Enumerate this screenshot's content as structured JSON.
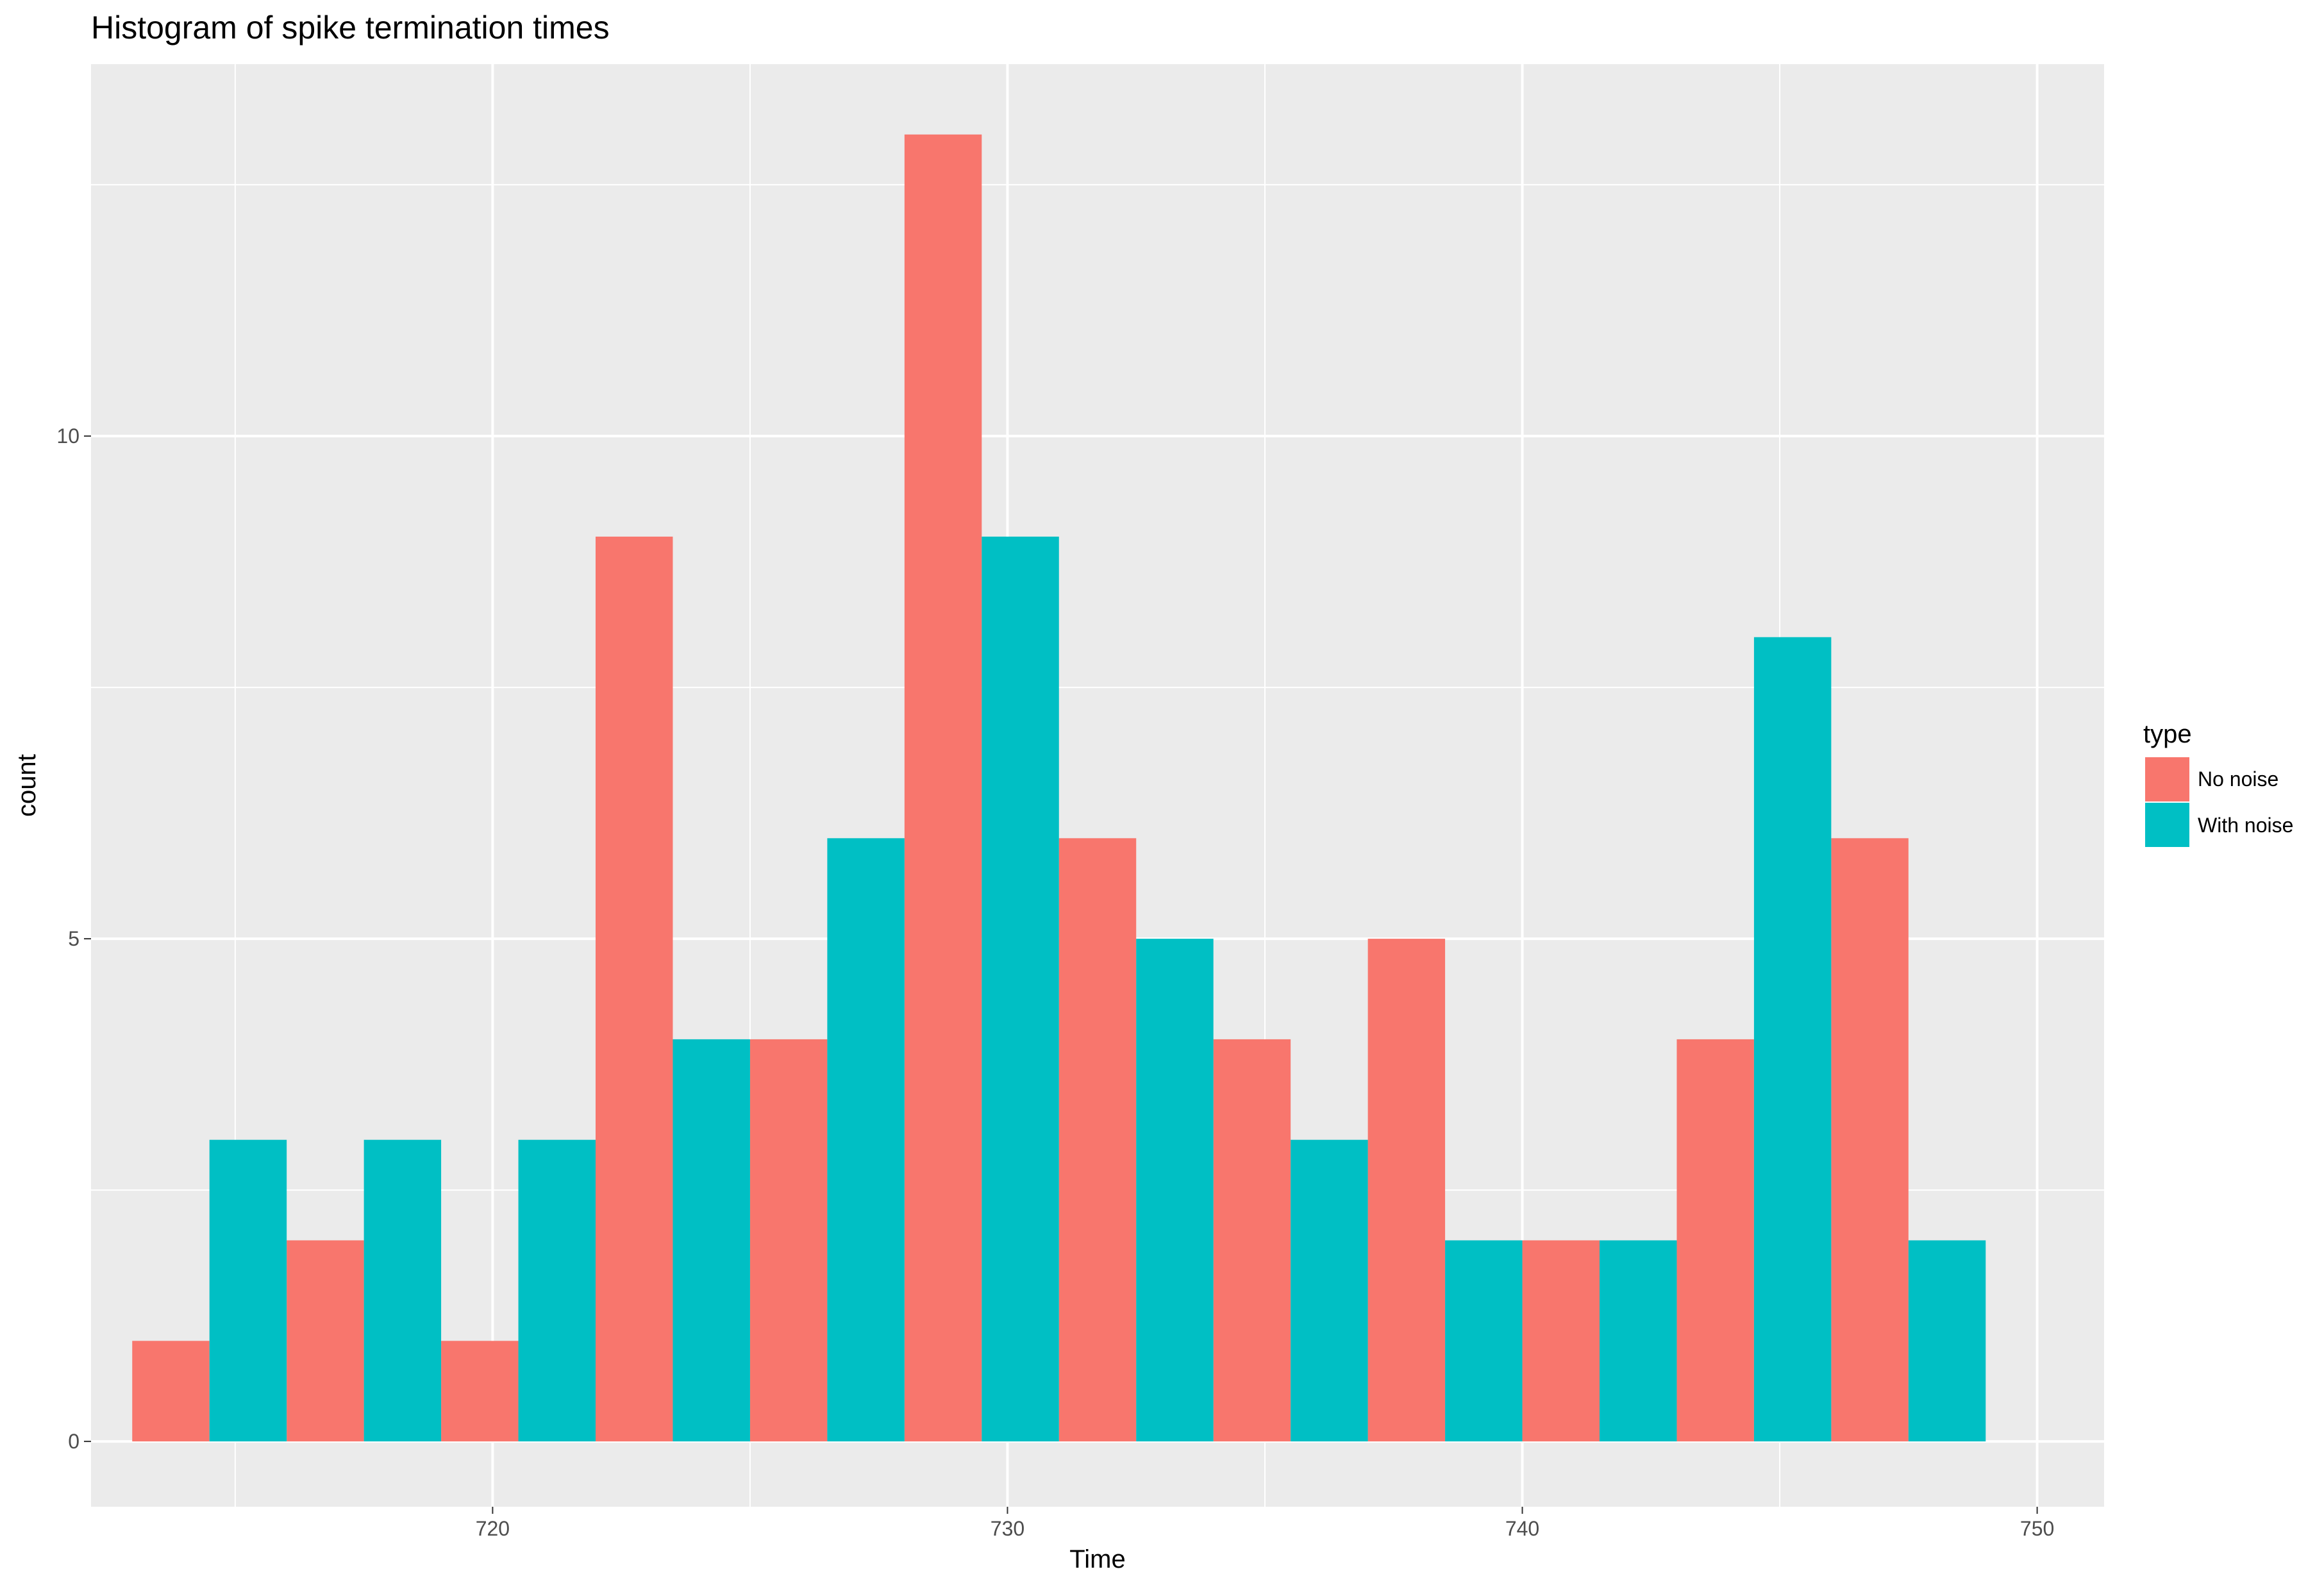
{
  "chart_data": {
    "type": "bar",
    "title": "Histogram of spike termination times",
    "xlabel": "Time",
    "ylabel": "count",
    "xlim": [
      712.2,
      751.3
    ],
    "ylim": [
      -0.65,
      13.7
    ],
    "x_ticks": [
      720,
      730,
      740,
      750
    ],
    "y_ticks": [
      0,
      5,
      10
    ],
    "bin_width": 3,
    "grid": true,
    "legend": {
      "title": "type",
      "position": "right",
      "entries": [
        {
          "label": "No noise",
          "color": "#F8766D"
        },
        {
          "label": "With noise",
          "color": "#00BFC4"
        }
      ]
    },
    "bin_centers": [
      714.5,
      717.5,
      720.5,
      723.5,
      726.5,
      729.5,
      732.5,
      735.5,
      738.5,
      741.5,
      744.5,
      747.5
    ],
    "series": [
      {
        "name": "No noise",
        "color": "#F8766D",
        "values": [
          1,
          2,
          1,
          9,
          4,
          13,
          6,
          4,
          5,
          2,
          4,
          6
        ]
      },
      {
        "name": "With noise",
        "color": "#00BFC4",
        "values": [
          3,
          3,
          3,
          4,
          6,
          9,
          5,
          3,
          2,
          2,
          8,
          2
        ]
      }
    ]
  }
}
